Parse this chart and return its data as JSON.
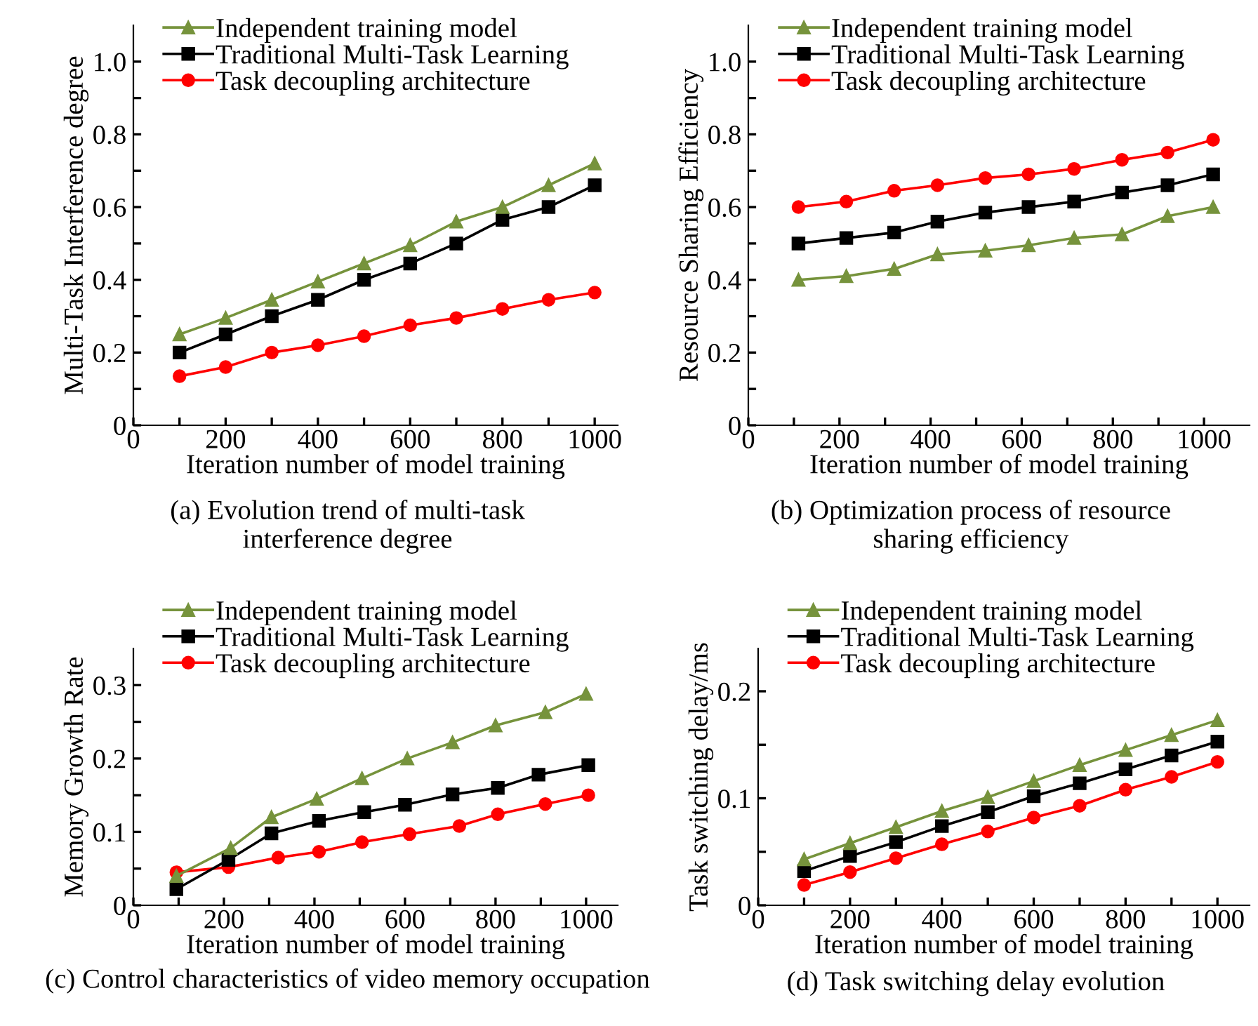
{
  "chart_data": [
    {
      "type": "line",
      "xlabel": "Iteration number of model training",
      "ylabel": "Multi-Task Interference degree",
      "annotations": [
        "(a) Evolution trend of multi-task\ninterference degree"
      ],
      "x": [
        100,
        200,
        300,
        400,
        500,
        600,
        700,
        800,
        900,
        1000
      ],
      "xlim": [
        0,
        1050
      ],
      "ylim": [
        0,
        1.1
      ],
      "xticks": [
        0,
        {
          "value": 100,
          "label": null
        },
        200,
        {
          "value": 300,
          "label": null
        },
        400,
        {
          "value": 500,
          "label": null
        },
        600,
        {
          "value": 700,
          "label": null
        },
        800,
        {
          "value": 900,
          "label": null
        },
        1000
      ],
      "yticks": [
        0,
        {
          "value": 0.1,
          "label": null
        },
        0.2,
        {
          "value": 0.3,
          "label": null
        },
        0.4,
        {
          "value": 0.5,
          "label": null
        },
        0.6,
        {
          "value": 0.7,
          "label": null
        },
        0.8,
        {
          "value": 0.9,
          "label": null
        },
        {
          "value": 1,
          "label": "1.0"
        }
      ],
      "legend": "top left",
      "grid": false,
      "series": [
        {
          "name": "Independent training model",
          "color": "#76933c",
          "marker": "triangle",
          "values": [
            0.25,
            0.295,
            0.345,
            0.395,
            0.445,
            0.495,
            0.56,
            0.6,
            0.66,
            0.72
          ]
        },
        {
          "name": "Traditional Multi-Task Learning",
          "color": "#000000",
          "marker": "square",
          "values": [
            0.2,
            0.25,
            0.3,
            0.345,
            0.4,
            0.445,
            0.5,
            0.565,
            0.6,
            0.66
          ]
        },
        {
          "name": "Task decoupling architecture",
          "color": "#ff0000",
          "marker": "circle",
          "values": [
            0.135,
            0.16,
            0.2,
            0.22,
            0.245,
            0.275,
            0.295,
            0.32,
            0.345,
            0.365
          ]
        }
      ]
    },
    {
      "type": "line",
      "xlabel": "Iteration number of model training",
      "ylabel": "Resource Sharing Efficiency",
      "annotations": [
        "(b) Optimization process of resource\nsharing efficiency"
      ],
      "x": [
        110,
        215,
        320,
        415,
        520,
        615,
        715,
        820,
        920,
        1020
      ],
      "xlim": [
        0,
        1100
      ],
      "ylim": [
        0,
        1.1
      ],
      "xticks": [
        0,
        {
          "value": 100,
          "label": null
        },
        200,
        {
          "value": 300,
          "label": null
        },
        400,
        {
          "value": 500,
          "label": null
        },
        600,
        {
          "value": 700,
          "label": null
        },
        800,
        {
          "value": 900,
          "label": null
        },
        1000
      ],
      "yticks": [
        0,
        {
          "value": 0.1,
          "label": null
        },
        0.2,
        {
          "value": 0.3,
          "label": null
        },
        0.4,
        {
          "value": 0.5,
          "label": null
        },
        0.6,
        {
          "value": 0.7,
          "label": null
        },
        0.8,
        {
          "value": 0.9,
          "label": null
        },
        {
          "value": 1,
          "label": "1.0"
        }
      ],
      "legend": "top left",
      "grid": false,
      "series": [
        {
          "name": "Independent training model",
          "color": "#76933c",
          "marker": "triangle",
          "values": [
            0.4,
            0.41,
            0.43,
            0.47,
            0.48,
            0.495,
            0.515,
            0.525,
            0.575,
            0.6
          ]
        },
        {
          "name": "Traditional Multi-Task Learning",
          "color": "#000000",
          "marker": "square",
          "values": [
            0.5,
            0.515,
            0.53,
            0.56,
            0.585,
            0.6,
            0.615,
            0.64,
            0.66,
            0.69
          ]
        },
        {
          "name": "Task decoupling architecture",
          "color": "#ff0000",
          "marker": "circle",
          "values": [
            0.6,
            0.615,
            0.645,
            0.66,
            0.68,
            0.69,
            0.705,
            0.73,
            0.75,
            0.785
          ]
        }
      ]
    },
    {
      "type": "line",
      "xlabel": "Iteration number of model training",
      "ylabel": "Memory Growth Rate",
      "annotations": [
        "(c) Control characteristics of video memory occupation"
      ],
      "xlim": [
        0,
        1070
      ],
      "ylim": [
        0,
        0.35
      ],
      "xticks": [
        0,
        {
          "value": 100,
          "label": null
        },
        200,
        {
          "value": 300,
          "label": null
        },
        400,
        {
          "value": 500,
          "label": null
        },
        600,
        {
          "value": 700,
          "label": null
        },
        800,
        {
          "value": 900,
          "label": null
        },
        1000
      ],
      "yticks": [
        0,
        {
          "value": 0.05,
          "label": null
        },
        0.1,
        {
          "value": 0.15,
          "label": null
        },
        0.2,
        {
          "value": 0.25,
          "label": null
        },
        0.3
      ],
      "legend": "top left",
      "grid": false,
      "series": [
        {
          "name": "Independent training model",
          "color": "#76933c",
          "marker": "triangle",
          "x": [
            95,
            215,
            305,
            405,
            505,
            605,
            705,
            800,
            910,
            1000
          ],
          "values": [
            0.04,
            0.078,
            0.12,
            0.145,
            0.173,
            0.2,
            0.222,
            0.245,
            0.263,
            0.288
          ]
        },
        {
          "name": "Traditional Multi-Task Learning",
          "color": "#000000",
          "marker": "square",
          "x": [
            95,
            210,
            305,
            410,
            510,
            600,
            705,
            805,
            895,
            1005
          ],
          "values": [
            0.022,
            0.062,
            0.098,
            0.115,
            0.127,
            0.137,
            0.151,
            0.16,
            0.178,
            0.191
          ]
        },
        {
          "name": "Task decoupling architecture",
          "color": "#ff0000",
          "marker": "circle",
          "x": [
            95,
            210,
            320,
            410,
            505,
            610,
            720,
            805,
            910,
            1005
          ],
          "values": [
            0.045,
            0.052,
            0.065,
            0.073,
            0.086,
            0.097,
            0.108,
            0.124,
            0.138,
            0.15
          ]
        }
      ]
    },
    {
      "type": "line",
      "xlabel": "Iteration number of model training",
      "ylabel": "Task switching delay/ms",
      "annotations": [
        "(d) Task switching delay evolution"
      ],
      "x": [
        100,
        200,
        300,
        400,
        500,
        600,
        700,
        800,
        900,
        1000
      ],
      "xlim": [
        0,
        1070
      ],
      "ylim": [
        0,
        0.24
      ],
      "xticks": [
        0,
        {
          "value": 100,
          "label": null
        },
        200,
        {
          "value": 300,
          "label": null
        },
        400,
        {
          "value": 500,
          "label": null
        },
        600,
        {
          "value": 700,
          "label": null
        },
        800,
        {
          "value": 900,
          "label": null
        },
        1000
      ],
      "yticks": [
        0,
        {
          "value": 0.05,
          "label": null
        },
        0.1,
        {
          "value": 0.15,
          "label": null
        },
        0.2
      ],
      "legend": "top left",
      "grid": false,
      "series": [
        {
          "name": "Independent training model",
          "color": "#76933c",
          "marker": "triangle",
          "values": [
            0.043,
            0.058,
            0.073,
            0.088,
            0.101,
            0.116,
            0.131,
            0.145,
            0.159,
            0.173
          ]
        },
        {
          "name": "Traditional Multi-Task Learning",
          "color": "#000000",
          "marker": "square",
          "values": [
            0.032,
            0.046,
            0.059,
            0.074,
            0.087,
            0.102,
            0.114,
            0.127,
            0.14,
            0.153
          ]
        },
        {
          "name": "Task decoupling architecture",
          "color": "#ff0000",
          "marker": "circle",
          "values": [
            0.019,
            0.031,
            0.044,
            0.057,
            0.069,
            0.082,
            0.093,
            0.108,
            0.12,
            0.134
          ]
        }
      ]
    }
  ]
}
